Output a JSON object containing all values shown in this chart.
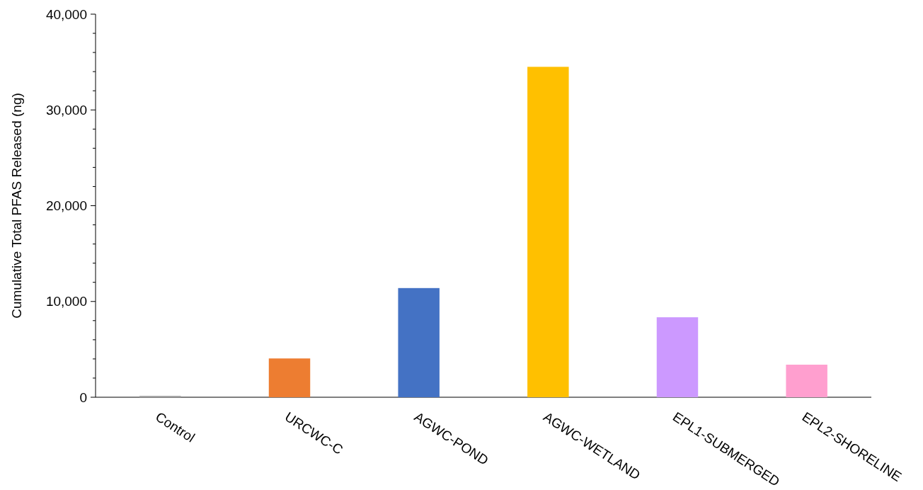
{
  "chart_data": {
    "type": "bar",
    "ylabel": "Cumulative Total PFAS Released (ng)",
    "categories": [
      "Control",
      "URCWC-C",
      "AGWC-POND",
      "AGWC-WETLAND",
      "EPL1-SUBMERGED",
      "EPL2-SHORELINE"
    ],
    "values": [
      150,
      4050,
      11400,
      34500,
      8350,
      3400
    ],
    "colors": [
      "#a5a5a5",
      "#ed7d31",
      "#4472c4",
      "#ffc000",
      "#cc99ff",
      "#ff9fcf"
    ],
    "ylim": [
      0,
      40000
    ],
    "yticks": [
      {
        "value": 0,
        "label": "0"
      },
      {
        "value": 2000,
        "label": null
      },
      {
        "value": 4000,
        "label": null
      },
      {
        "value": 6000,
        "label": null
      },
      {
        "value": 8000,
        "label": null
      },
      {
        "value": 10000,
        "label": "10,000"
      },
      {
        "value": 12000,
        "label": null
      },
      {
        "value": 14000,
        "label": null
      },
      {
        "value": 16000,
        "label": null
      },
      {
        "value": 18000,
        "label": null
      },
      {
        "value": 20000,
        "label": "20,000"
      },
      {
        "value": 22000,
        "label": null
      },
      {
        "value": 24000,
        "label": null
      },
      {
        "value": 26000,
        "label": null
      },
      {
        "value": 28000,
        "label": null
      },
      {
        "value": 30000,
        "label": "30,000"
      },
      {
        "value": 32000,
        "label": null
      },
      {
        "value": 34000,
        "label": null
      },
      {
        "value": 36000,
        "label": null
      },
      {
        "value": 38000,
        "label": null
      },
      {
        "value": 40000,
        "label": "40,000"
      }
    ]
  }
}
